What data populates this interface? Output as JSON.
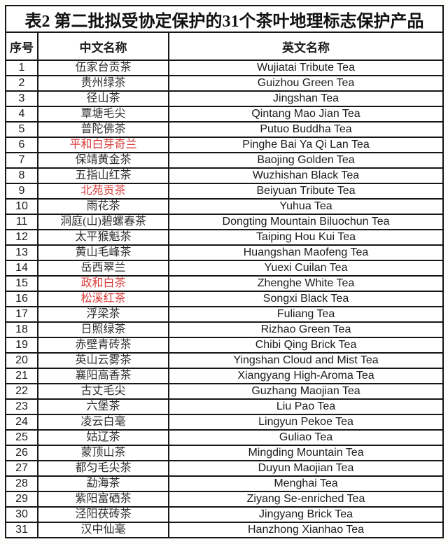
{
  "title": "表2 第二批拟受协定保护的31个茶叶地理标志保护产品",
  "colors": {
    "border": "#161616",
    "text": "#1b1b1b",
    "red_highlight": "#d93b3a",
    "background": "#ffffff"
  },
  "table": {
    "columns": [
      "序号",
      "中文名称",
      "英文名称"
    ],
    "rows": [
      {
        "no": "1",
        "zh": "伍家台贡茶",
        "en": "Wujiatai Tribute Tea",
        "red": false
      },
      {
        "no": "2",
        "zh": "贵州绿茶",
        "en": "Guizhou Green Tea",
        "red": false
      },
      {
        "no": "3",
        "zh": "径山茶",
        "en": "Jingshan Tea",
        "red": false
      },
      {
        "no": "4",
        "zh": "覃塘毛尖",
        "en": "Qintang Mao Jian Tea",
        "red": false
      },
      {
        "no": "5",
        "zh": "普陀佛茶",
        "en": "Putuo Buddha Tea",
        "red": false
      },
      {
        "no": "6",
        "zh": "平和白芽奇兰",
        "en": "Pinghe Bai Ya Qi Lan Tea",
        "red": true
      },
      {
        "no": "7",
        "zh": "保靖黄金茶",
        "en": "Baojing Golden Tea",
        "red": false
      },
      {
        "no": "8",
        "zh": "五指山红茶",
        "en": "Wuzhishan Black Tea",
        "red": false
      },
      {
        "no": "9",
        "zh": "北苑贡茶",
        "en": "Beiyuan Tribute Tea",
        "red": true
      },
      {
        "no": "10",
        "zh": "雨花茶",
        "en": "Yuhua Tea",
        "red": false
      },
      {
        "no": "11",
        "zh": "洞庭(山)碧螺春茶",
        "en": "Dongting Mountain Biluochun Tea",
        "red": false
      },
      {
        "no": "12",
        "zh": "太平猴魁茶",
        "en": "Taiping Hou Kui Tea",
        "red": false
      },
      {
        "no": "13",
        "zh": "黄山毛峰茶",
        "en": "Huangshan Maofeng Tea",
        "red": false
      },
      {
        "no": "14",
        "zh": "岳西翠兰",
        "en": "Yuexi Cuilan Tea",
        "red": false
      },
      {
        "no": "15",
        "zh": "政和白茶",
        "en": "Zhenghe White Tea",
        "red": true
      },
      {
        "no": "16",
        "zh": "松溪红茶",
        "en": "Songxi Black Tea",
        "red": true
      },
      {
        "no": "17",
        "zh": "浮梁茶",
        "en": "Fuliang Tea",
        "red": false
      },
      {
        "no": "18",
        "zh": "日照绿茶",
        "en": "Rizhao Green Tea",
        "red": false
      },
      {
        "no": "19",
        "zh": "赤壁青砖茶",
        "en": "Chibi Qing Brick Tea",
        "red": false
      },
      {
        "no": "20",
        "zh": "英山云雾茶",
        "en": "Yingshan Cloud and Mist Tea",
        "red": false
      },
      {
        "no": "21",
        "zh": "襄阳高香茶",
        "en": "Xiangyang High-Aroma Tea",
        "red": false
      },
      {
        "no": "22",
        "zh": "古丈毛尖",
        "en": "Guzhang Maojian Tea",
        "red": false
      },
      {
        "no": "23",
        "zh": "六堡茶",
        "en": "Liu Pao Tea",
        "red": false
      },
      {
        "no": "24",
        "zh": "凌云白毫",
        "en": "Lingyun Pekoe Tea",
        "red": false
      },
      {
        "no": "25",
        "zh": "姑辽茶",
        "en": "Guliao Tea",
        "red": false
      },
      {
        "no": "26",
        "zh": "蒙顶山茶",
        "en": "Mingding Mountain Tea",
        "red": false
      },
      {
        "no": "27",
        "zh": "都匀毛尖茶",
        "en": "Duyun Maojian Tea",
        "red": false
      },
      {
        "no": "28",
        "zh": "勐海茶",
        "en": "Menghai Tea",
        "red": false
      },
      {
        "no": "29",
        "zh": "紫阳富硒茶",
        "en": "Ziyang Se-enriched Tea",
        "red": false
      },
      {
        "no": "30",
        "zh": "泾阳茯砖茶",
        "en": "Jingyang Brick Tea",
        "red": false
      },
      {
        "no": "31",
        "zh": "汉中仙毫",
        "en": "Hanzhong Xianhao Tea",
        "red": false
      }
    ]
  }
}
